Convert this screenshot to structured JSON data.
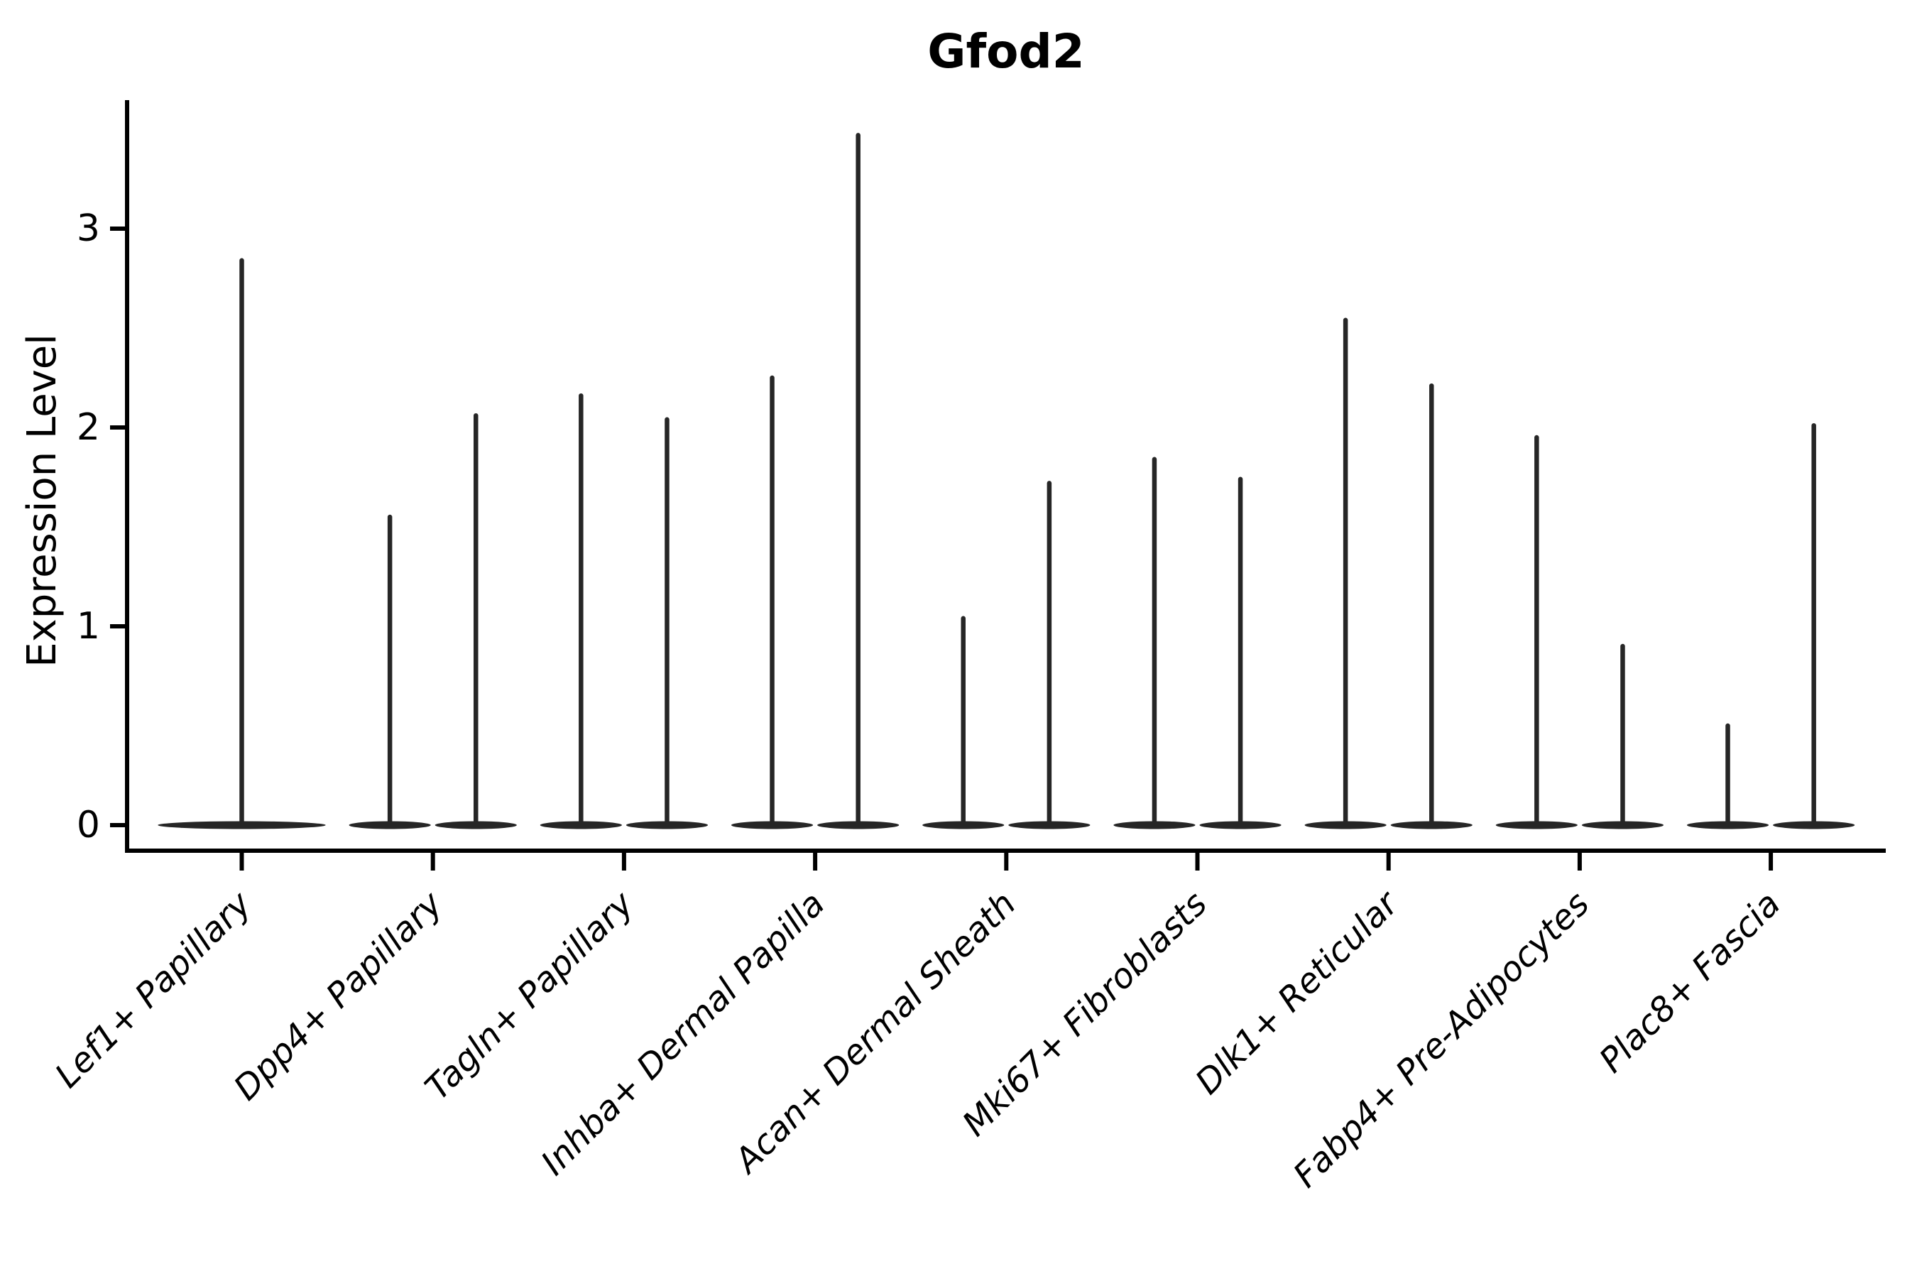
{
  "title": "Gfod2",
  "chart_data": {
    "type": "violin",
    "title": "Gfod2",
    "ylabel": "Expression Level",
    "xlabel": "",
    "yticks": [
      0,
      1,
      2,
      3
    ],
    "ylim": [
      -0.13,
      3.65
    ],
    "grid": false,
    "legend_position": "none",
    "baseline_value": 0,
    "categories": [
      "Lef1+ Papillary",
      "Dpp4+ Papillary",
      "Tagln+ Papillary",
      "Inhba+ Dermal Papilla",
      "Acan+ Dermal Sheath",
      "Mki67+ Fibroblasts",
      "Dlk1+ Reticular",
      "Fabp4+ Pre-Adipocytes",
      "Plac8+ Fascia"
    ],
    "violins": [
      {
        "category": "Lef1+ Papillary",
        "parts": [
          {
            "pos": 0,
            "width": 0.9,
            "max": 2.84
          }
        ]
      },
      {
        "category": "Dpp4+ Papillary",
        "parts": [
          {
            "pos": -0.225,
            "width": 0.45,
            "max": 1.55
          },
          {
            "pos": 0.225,
            "width": 0.45,
            "max": 2.06
          }
        ]
      },
      {
        "category": "Tagln+ Papillary",
        "parts": [
          {
            "pos": -0.225,
            "width": 0.45,
            "max": 2.16
          },
          {
            "pos": 0.225,
            "width": 0.45,
            "max": 2.04
          }
        ]
      },
      {
        "category": "Inhba+ Dermal Papilla",
        "parts": [
          {
            "pos": -0.225,
            "width": 0.45,
            "max": 2.25
          },
          {
            "pos": 0.225,
            "width": 0.45,
            "max": 3.47
          }
        ]
      },
      {
        "category": "Acan+ Dermal Sheath",
        "parts": [
          {
            "pos": -0.225,
            "width": 0.45,
            "max": 1.04
          },
          {
            "pos": 0.225,
            "width": 0.45,
            "max": 1.72
          }
        ]
      },
      {
        "category": "Mki67+ Fibroblasts",
        "parts": [
          {
            "pos": -0.225,
            "width": 0.45,
            "max": 1.84
          },
          {
            "pos": 0.225,
            "width": 0.45,
            "max": 1.74
          }
        ]
      },
      {
        "category": "Dlk1+ Reticular",
        "parts": [
          {
            "pos": -0.225,
            "width": 0.45,
            "max": 2.54
          },
          {
            "pos": 0.225,
            "width": 0.45,
            "max": 2.21
          }
        ]
      },
      {
        "category": "Fabp4+ Pre-Adipocytes",
        "parts": [
          {
            "pos": -0.225,
            "width": 0.45,
            "max": 1.95
          },
          {
            "pos": 0.225,
            "width": 0.45,
            "max": 0.9
          }
        ]
      },
      {
        "category": "Plac8+ Fascia",
        "parts": [
          {
            "pos": -0.225,
            "width": 0.45,
            "max": 0.5
          },
          {
            "pos": 0.225,
            "width": 0.45,
            "max": 2.01
          }
        ]
      }
    ],
    "colors": {
      "violin": "#262626",
      "axis": "#000000",
      "text": "#000000",
      "background": "#ffffff"
    }
  }
}
